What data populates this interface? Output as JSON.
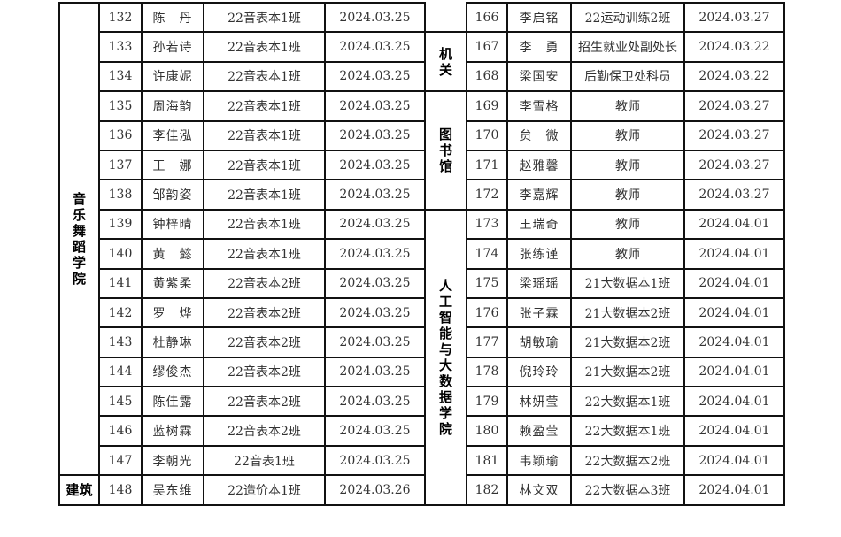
{
  "left_depts": [
    {
      "name": "音乐舞蹈学院",
      "rows": 16,
      "vertical": true
    },
    {
      "name": "建筑",
      "rows": 1,
      "vertical": false
    }
  ],
  "right_depts": [
    {
      "name": "",
      "rows": 1,
      "vertical": true,
      "continued": true
    },
    {
      "name": "机关",
      "rows": 2,
      "vertical": true
    },
    {
      "name": "图书馆",
      "rows": 4,
      "vertical": true
    },
    {
      "name": "人工智能与大数据学院",
      "rows": 10,
      "vertical": true
    }
  ],
  "left_rows": [
    {
      "no": "132",
      "name": "陈　丹",
      "class": "22音表本1班",
      "date": "2024.03.25"
    },
    {
      "no": "133",
      "name": "孙若诗",
      "class": "22音表本1班",
      "date": "2024.03.25"
    },
    {
      "no": "134",
      "name": "许康妮",
      "class": "22音表本1班",
      "date": "2024.03.25"
    },
    {
      "no": "135",
      "name": "周海韵",
      "class": "22音表本1班",
      "date": "2024.03.25"
    },
    {
      "no": "136",
      "name": "李佳泓",
      "class": "22音表本1班",
      "date": "2024.03.25"
    },
    {
      "no": "137",
      "name": "王　娜",
      "class": "22音表本1班",
      "date": "2024.03.25"
    },
    {
      "no": "138",
      "name": "邹韵姿",
      "class": "22音表本1班",
      "date": "2024.03.25"
    },
    {
      "no": "139",
      "name": "钟梓晴",
      "class": "22音表本1班",
      "date": "2024.03.25"
    },
    {
      "no": "140",
      "name": "黄　懿",
      "class": "22音表本1班",
      "date": "2024.03.25"
    },
    {
      "no": "141",
      "name": "黄紫柔",
      "class": "22音表本2班",
      "date": "2024.03.25"
    },
    {
      "no": "142",
      "name": "罗　烨",
      "class": "22音表本2班",
      "date": "2024.03.25"
    },
    {
      "no": "143",
      "name": "杜静琳",
      "class": "22音表本2班",
      "date": "2024.03.25"
    },
    {
      "no": "144",
      "name": "缪俊杰",
      "class": "22音表本2班",
      "date": "2024.03.25"
    },
    {
      "no": "145",
      "name": "陈佳露",
      "class": "22音表本2班",
      "date": "2024.03.25"
    },
    {
      "no": "146",
      "name": "蓝树霖",
      "class": "22音表本2班",
      "date": "2024.03.25"
    },
    {
      "no": "147",
      "name": "李朝光",
      "class": "22音表1班",
      "date": "2024.03.25"
    },
    {
      "no": "148",
      "name": "吴东维",
      "class": "22造价本1班",
      "date": "2024.03.26"
    }
  ],
  "right_rows": [
    {
      "no": "166",
      "name": "李启铭",
      "class": "22运动训练2班",
      "date": "2024.03.27"
    },
    {
      "no": "167",
      "name": "李　勇",
      "class": "招生就业处副处长",
      "date": "2024.03.22"
    },
    {
      "no": "168",
      "name": "梁国安",
      "class": "后勤保卫处科员",
      "date": "2024.03.22"
    },
    {
      "no": "169",
      "name": "李雪格",
      "class": "教师",
      "date": "2024.03.27"
    },
    {
      "no": "170",
      "name": "贠　微",
      "class": "教师",
      "date": "2024.03.27"
    },
    {
      "no": "171",
      "name": "赵雅馨",
      "class": "教师",
      "date": "2024.03.27"
    },
    {
      "no": "172",
      "name": "李嘉辉",
      "class": "教师",
      "date": "2024.03.27"
    },
    {
      "no": "173",
      "name": "王瑞奇",
      "class": "教师",
      "date": "2024.04.01"
    },
    {
      "no": "174",
      "name": "张练谨",
      "class": "教师",
      "date": "2024.04.01"
    },
    {
      "no": "175",
      "name": "梁瑶瑶",
      "class": "21大数据本1班",
      "date": "2024.04.01"
    },
    {
      "no": "176",
      "name": "张子霖",
      "class": "21大数据本2班",
      "date": "2024.04.01"
    },
    {
      "no": "177",
      "name": "胡敏瑜",
      "class": "21大数据本2班",
      "date": "2024.04.01"
    },
    {
      "no": "178",
      "name": "倪玲玲",
      "class": "21大数据本2班",
      "date": "2024.04.01"
    },
    {
      "no": "179",
      "name": "林妍莹",
      "class": "22大数据本1班",
      "date": "2024.04.01"
    },
    {
      "no": "180",
      "name": "赖盈莹",
      "class": "22大数据本1班",
      "date": "2024.04.01"
    },
    {
      "no": "181",
      "name": "韦颖瑜",
      "class": "22大数据本2班",
      "date": "2024.04.01"
    },
    {
      "no": "182",
      "name": "林文双",
      "class": "22大数据本3班",
      "date": "2024.04.01"
    }
  ]
}
